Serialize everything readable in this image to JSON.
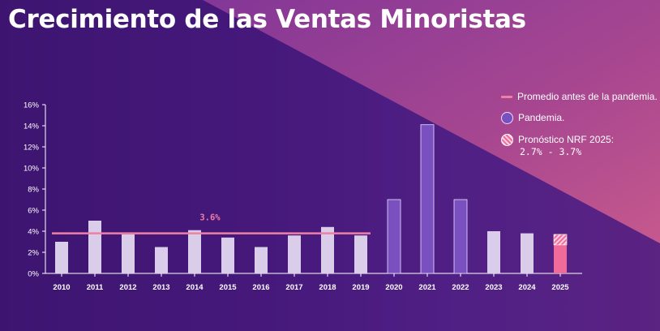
{
  "title": "Crecimiento de las Ventas Minoristas",
  "colors": {
    "bar": "#d9cde9",
    "pandemic": "#7a4fbf",
    "forecast": "#f06a9a",
    "average": "#ef7fa6",
    "axis": "#ffffff"
  },
  "legend": {
    "average": "Promedio antes de la pandemia.",
    "pandemic": "Pandemia.",
    "forecast": "Pronóstico NRF 2025:",
    "forecast_range": "2.7% - 3.7%"
  },
  "chart_data": {
    "type": "bar",
    "title": "Crecimiento de las Ventas Minoristas",
    "categories": [
      "2010",
      "2011",
      "2012",
      "2013",
      "2014",
      "2015",
      "2016",
      "2017",
      "2018",
      "2019",
      "2020",
      "2021",
      "2022",
      "2023",
      "2024",
      "2025"
    ],
    "values": [
      3.0,
      5.0,
      3.7,
      2.5,
      4.1,
      3.4,
      2.5,
      3.6,
      4.4,
      3.6,
      7.0,
      14.1,
      7.0,
      4.0,
      3.8,
      3.7
    ],
    "pandemic_years": [
      "2020",
      "2021",
      "2022"
    ],
    "forecast": {
      "category": "2025",
      "low": 2.7,
      "high": 3.7
    },
    "average_line": {
      "value": 3.6,
      "label": "3.6%",
      "from": "2010",
      "to": "2019"
    },
    "ylim": [
      0,
      16
    ],
    "yticks": [
      0,
      2,
      4,
      6,
      8,
      10,
      12,
      14,
      16
    ],
    "ytick_labels": [
      "0%",
      "2%",
      "4%",
      "6%",
      "8%",
      "10%",
      "12%",
      "14%",
      "16%"
    ],
    "xlabel": "",
    "ylabel": "",
    "grid": false,
    "legend_position": "top-right"
  }
}
